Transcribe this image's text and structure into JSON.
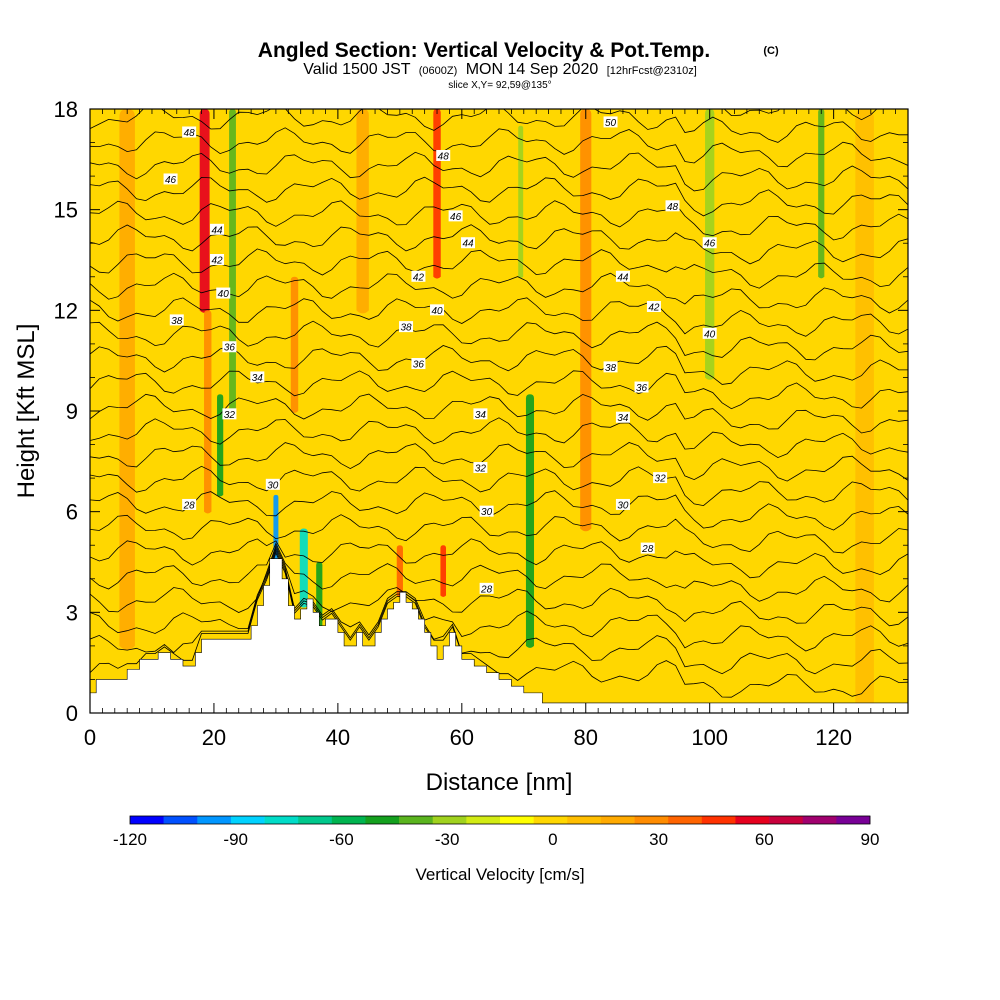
{
  "title": {
    "main": "Angled Section: Vertical Velocity & Pot.Temp.",
    "main_note": "(C)",
    "valid_a": "Valid 1500 JST",
    "valid_utc": "(0600Z)",
    "valid_b": "MON 14 Sep 2020",
    "fcst": "[12hrFcst@2310z]",
    "slice": "slice X,Y= 92,59@135°"
  },
  "chart_data": {
    "type": "heatmap",
    "xlabel": "Distance [nm]",
    "ylabel": "Height [Kft MSL]",
    "xlim": [
      0,
      132
    ],
    "ylim": [
      0,
      18
    ],
    "x_ticks": [
      0,
      20,
      40,
      60,
      80,
      100,
      120
    ],
    "y_ticks": [
      0,
      3,
      6,
      9,
      12,
      15,
      18
    ],
    "background_value": 0,
    "velocity_features": [
      {
        "x": 18.5,
        "y0": 12,
        "y1": 18,
        "width": 1.6,
        "value": 55
      },
      {
        "x": 19,
        "y0": 6,
        "y1": 12,
        "width": 1.2,
        "value": 30
      },
      {
        "x": 23,
        "y0": 9,
        "y1": 18,
        "width": 1.1,
        "value": -35
      },
      {
        "x": 21,
        "y0": 6.5,
        "y1": 9.5,
        "width": 1.0,
        "value": -45
      },
      {
        "x": 30,
        "y0": 3.5,
        "y1": 6.5,
        "width": 0.8,
        "value": -100
      },
      {
        "x": 34.5,
        "y0": 3.2,
        "y1": 5.5,
        "width": 1.3,
        "value": -80
      },
      {
        "x": 37,
        "y0": 2.2,
        "y1": 4.5,
        "width": 1.0,
        "value": -50
      },
      {
        "x": 33,
        "y0": 9,
        "y1": 13,
        "width": 1.2,
        "value": 30
      },
      {
        "x": 56,
        "y0": 13,
        "y1": 18,
        "width": 1.2,
        "value": 50
      },
      {
        "x": 57,
        "y0": 3.5,
        "y1": 5,
        "width": 0.9,
        "value": 45
      },
      {
        "x": 50,
        "y0": 3.5,
        "y1": 5,
        "width": 1.0,
        "value": 35
      },
      {
        "x": 71,
        "y0": 2,
        "y1": 9.5,
        "width": 1.3,
        "value": -50
      },
      {
        "x": 69.5,
        "y0": 13,
        "y1": 17.5,
        "width": 0.8,
        "value": -30
      },
      {
        "x": 80,
        "y0": 5.5,
        "y1": 18,
        "width": 1.8,
        "value": 30
      },
      {
        "x": 100,
        "y0": 10,
        "y1": 18,
        "width": 1.5,
        "value": -25
      },
      {
        "x": 118,
        "y0": 13,
        "y1": 18,
        "width": 1.0,
        "value": -35
      },
      {
        "x": 6,
        "y0": 2,
        "y1": 18,
        "width": 2.5,
        "value": 15
      },
      {
        "x": 44,
        "y0": 12,
        "y1": 18,
        "width": 2.0,
        "value": 15
      },
      {
        "x": 125,
        "y0": 0,
        "y1": 18,
        "width": 3.0,
        "value": 10
      }
    ],
    "terrain": {
      "x": [
        0,
        1,
        5,
        6,
        8,
        11,
        13,
        15,
        17,
        18,
        26,
        27,
        28,
        29,
        30,
        31,
        32,
        33,
        34,
        35,
        36,
        37,
        38,
        40,
        41,
        42,
        43,
        44,
        45,
        46,
        47,
        48,
        49,
        50,
        51,
        52,
        53,
        54,
        55,
        56,
        57,
        58,
        59,
        60,
        62,
        64,
        66,
        68,
        70,
        73,
        132
      ],
      "height": [
        0.6,
        1.0,
        1.0,
        1.3,
        1.6,
        1.8,
        1.6,
        1.4,
        1.8,
        2.2,
        2.6,
        3.2,
        3.8,
        4.6,
        4.6,
        4.0,
        3.2,
        2.8,
        3.1,
        3.4,
        3.0,
        2.6,
        2.8,
        2.4,
        2.0,
        2.0,
        2.4,
        2.0,
        2.0,
        2.4,
        2.8,
        3.1,
        3.3,
        3.6,
        3.3,
        3.1,
        2.8,
        2.4,
        2.0,
        1.6,
        2.0,
        2.4,
        2.0,
        1.6,
        1.4,
        1.2,
        1.0,
        0.8,
        0.6,
        0.3,
        0.3
      ]
    },
    "theta_contours": {
      "start": 26,
      "step": 1,
      "count": 25,
      "labels": [
        {
          "x": 16,
          "y": 17.3,
          "text": "48"
        },
        {
          "x": 13,
          "y": 15.9,
          "text": "46"
        },
        {
          "x": 20.5,
          "y": 14.4,
          "text": "44"
        },
        {
          "x": 20.5,
          "y": 13.5,
          "text": "42"
        },
        {
          "x": 21.5,
          "y": 12.5,
          "text": "40"
        },
        {
          "x": 14,
          "y": 11.7,
          "text": "38"
        },
        {
          "x": 22.5,
          "y": 10.9,
          "text": "36"
        },
        {
          "x": 27,
          "y": 10.0,
          "text": "34"
        },
        {
          "x": 22.5,
          "y": 8.9,
          "text": "32"
        },
        {
          "x": 29.5,
          "y": 6.8,
          "text": "30"
        },
        {
          "x": 16,
          "y": 6.2,
          "text": "28"
        },
        {
          "x": 57,
          "y": 16.6,
          "text": "48"
        },
        {
          "x": 59,
          "y": 14.8,
          "text": "46"
        },
        {
          "x": 61,
          "y": 14.0,
          "text": "44"
        },
        {
          "x": 53,
          "y": 13.0,
          "text": "42"
        },
        {
          "x": 56,
          "y": 12.0,
          "text": "40"
        },
        {
          "x": 51,
          "y": 11.5,
          "text": "38"
        },
        {
          "x": 53,
          "y": 10.4,
          "text": "36"
        },
        {
          "x": 63,
          "y": 8.9,
          "text": "34"
        },
        {
          "x": 63,
          "y": 7.3,
          "text": "32"
        },
        {
          "x": 64,
          "y": 6.0,
          "text": "30"
        },
        {
          "x": 64,
          "y": 3.7,
          "text": "28"
        },
        {
          "x": 84,
          "y": 17.6,
          "text": "50"
        },
        {
          "x": 94,
          "y": 15.1,
          "text": "48"
        },
        {
          "x": 100,
          "y": 14.0,
          "text": "46"
        },
        {
          "x": 86,
          "y": 13.0,
          "text": "44"
        },
        {
          "x": 91,
          "y": 12.1,
          "text": "42"
        },
        {
          "x": 100,
          "y": 11.3,
          "text": "40"
        },
        {
          "x": 84,
          "y": 10.3,
          "text": "38"
        },
        {
          "x": 89,
          "y": 9.7,
          "text": "36"
        },
        {
          "x": 86,
          "y": 8.8,
          "text": "34"
        },
        {
          "x": 92,
          "y": 7.0,
          "text": "32"
        },
        {
          "x": 86,
          "y": 6.2,
          "text": "30"
        },
        {
          "x": 90,
          "y": 4.9,
          "text": "28"
        }
      ]
    }
  },
  "colorbar": {
    "title": "Vertical Velocity [cm/s]",
    "labels": [
      "-120",
      "-90",
      "-60",
      "-30",
      "0",
      "30",
      "60",
      "90"
    ],
    "label_values": [
      -120,
      -90,
      -60,
      -30,
      0,
      30,
      60,
      90
    ],
    "min": -120,
    "max": 90,
    "colors": [
      "#0000ff",
      "#0050ff",
      "#0096ff",
      "#00d2ff",
      "#00dcc8",
      "#00c88c",
      "#00b450",
      "#14a01e",
      "#5ab41e",
      "#a0d21e",
      "#d2eb14",
      "#ffff00",
      "#ffd700",
      "#ffbe00",
      "#ffaa00",
      "#ff8c00",
      "#ff6400",
      "#ff3200",
      "#e6001e",
      "#c8003c",
      "#a0006e",
      "#780096"
    ]
  }
}
